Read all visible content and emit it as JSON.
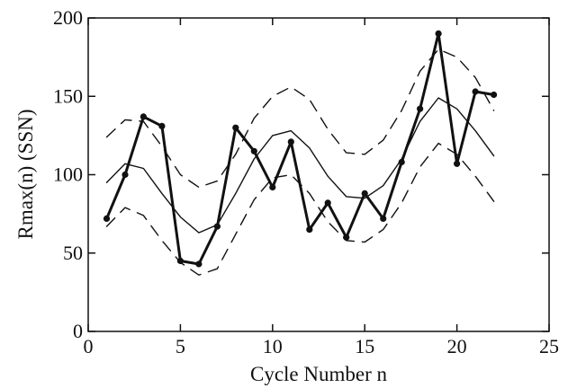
{
  "chart_data": {
    "type": "line",
    "xlabel": "Cycle Number n",
    "ylabel": "Rmax(n) (SSN)",
    "xlim": [
      0,
      25
    ],
    "ylim": [
      0,
      200
    ],
    "xticks": [
      "0",
      "5",
      "10",
      "15",
      "20",
      "25"
    ],
    "yticks": [
      "0",
      "50",
      "100",
      "150",
      "200"
    ],
    "grid": false,
    "series": [
      {
        "style": "thick solid with filled circle markers",
        "color": "#111111",
        "x": [
          1,
          2,
          3,
          4,
          5,
          6,
          7,
          8,
          9,
          10,
          11,
          12,
          13,
          14,
          15,
          16,
          17,
          18,
          19,
          20,
          21,
          22
        ],
        "values": [
          72,
          100,
          137,
          131,
          45,
          43,
          67,
          130,
          115,
          92,
          121,
          65,
          82,
          60,
          88,
          72,
          108,
          142,
          190,
          107,
          153,
          151
        ]
      },
      {
        "style": "thin solid",
        "color": "#111111",
        "x": [
          1,
          2,
          3,
          4,
          5,
          6,
          7,
          8,
          9,
          10,
          11,
          12,
          13,
          14,
          15,
          16,
          17,
          18,
          19,
          20,
          21,
          22
        ],
        "values": [
          95,
          107,
          104,
          88,
          73,
          63,
          68,
          88,
          110,
          125,
          128,
          117,
          99,
          86,
          85,
          93,
          110,
          134,
          149,
          142,
          128,
          112
        ]
      },
      {
        "style": "dashed upper",
        "color": "#111111",
        "x": [
          1,
          2,
          3,
          4,
          5,
          6,
          7,
          8,
          9,
          10,
          11,
          12,
          13,
          14,
          15,
          16,
          17,
          18,
          19,
          20,
          21,
          22
        ],
        "values": [
          124,
          135,
          134,
          118,
          100,
          92,
          96,
          113,
          136,
          150,
          156,
          148,
          129,
          114,
          113,
          122,
          141,
          166,
          180,
          175,
          162,
          141
        ]
      },
      {
        "style": "dashed lower",
        "color": "#111111",
        "x": [
          1,
          2,
          3,
          4,
          5,
          6,
          7,
          8,
          9,
          10,
          11,
          12,
          13,
          14,
          15,
          16,
          17,
          18,
          19,
          20,
          21,
          22
        ],
        "values": [
          67,
          79,
          74,
          58,
          44,
          36,
          40,
          62,
          84,
          98,
          100,
          88,
          70,
          58,
          57,
          65,
          82,
          105,
          120,
          113,
          99,
          83
        ]
      }
    ]
  }
}
